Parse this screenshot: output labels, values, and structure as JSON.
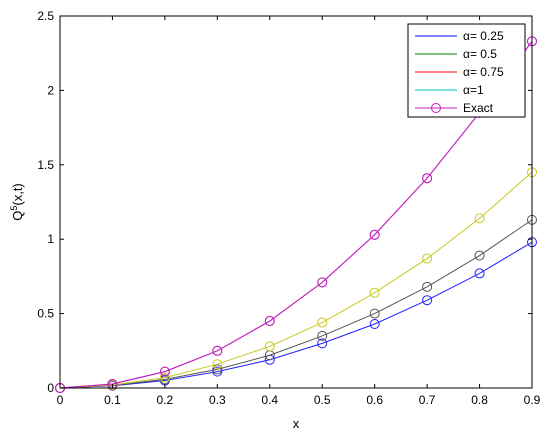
{
  "chart_data": {
    "type": "line",
    "title": "",
    "xlabel": "x",
    "ylabel": {
      "base": "Q",
      "superscript": "5",
      "rest": "(x,t)"
    },
    "xlim": [
      0,
      0.9
    ],
    "ylim": [
      0,
      2.5
    ],
    "x_ticks": [
      "0",
      "0.1",
      "0.2",
      "0.3",
      "0.4",
      "0.5",
      "0.6",
      "0.7",
      "0.8",
      "0.9"
    ],
    "y_ticks": [
      "0",
      "0.5",
      "1",
      "1.5",
      "2",
      "2.5"
    ],
    "x": [
      0,
      0.1,
      0.2,
      0.3,
      0.4,
      0.5,
      0.6,
      0.7,
      0.8,
      0.9
    ],
    "grid": false,
    "legend_position": "top-right",
    "series": [
      {
        "name": "α= 0.25",
        "color": "#2020ff",
        "marker": "circle",
        "show_in_legend": true,
        "values": [
          0,
          0.015,
          0.05,
          0.11,
          0.19,
          0.3,
          0.43,
          0.59,
          0.77,
          0.98
        ]
      },
      {
        "name": "α= 0.5",
        "color": "#555555",
        "marker": "circle",
        "show_in_legend": true,
        "values": [
          0,
          0.017,
          0.058,
          0.125,
          0.22,
          0.35,
          0.5,
          0.68,
          0.89,
          1.13
        ]
      },
      {
        "name": "α= 0.75",
        "color": "#c8c820",
        "marker": "circle",
        "show_in_legend": true,
        "values": [
          0,
          0.02,
          0.07,
          0.16,
          0.28,
          0.44,
          0.64,
          0.87,
          1.14,
          1.45
        ]
      },
      {
        "name": "α=1",
        "color": "#c020c0",
        "marker": "circle",
        "show_in_legend": true,
        "values": [
          0,
          0.027,
          0.11,
          0.25,
          0.45,
          0.71,
          1.03,
          1.41,
          1.85,
          2.33
        ]
      },
      {
        "name": "Exact",
        "color": "#c020c0",
        "marker": "circle",
        "show_in_legend": true,
        "values": [
          0,
          0.027,
          0.11,
          0.25,
          0.45,
          0.71,
          1.03,
          1.41,
          1.85,
          2.33
        ]
      }
    ],
    "legend_entries": [
      {
        "label": "α= 0.25",
        "color": "#0000ff",
        "marker": false
      },
      {
        "label": "α= 0.5",
        "color": "#008000",
        "marker": false
      },
      {
        "label": "α= 0.75",
        "color": "#ff0000",
        "marker": false
      },
      {
        "label": "α=1",
        "color": "#00bfbf",
        "marker": false
      },
      {
        "label": "Exact",
        "color": "#c020c0",
        "marker": true
      }
    ]
  }
}
